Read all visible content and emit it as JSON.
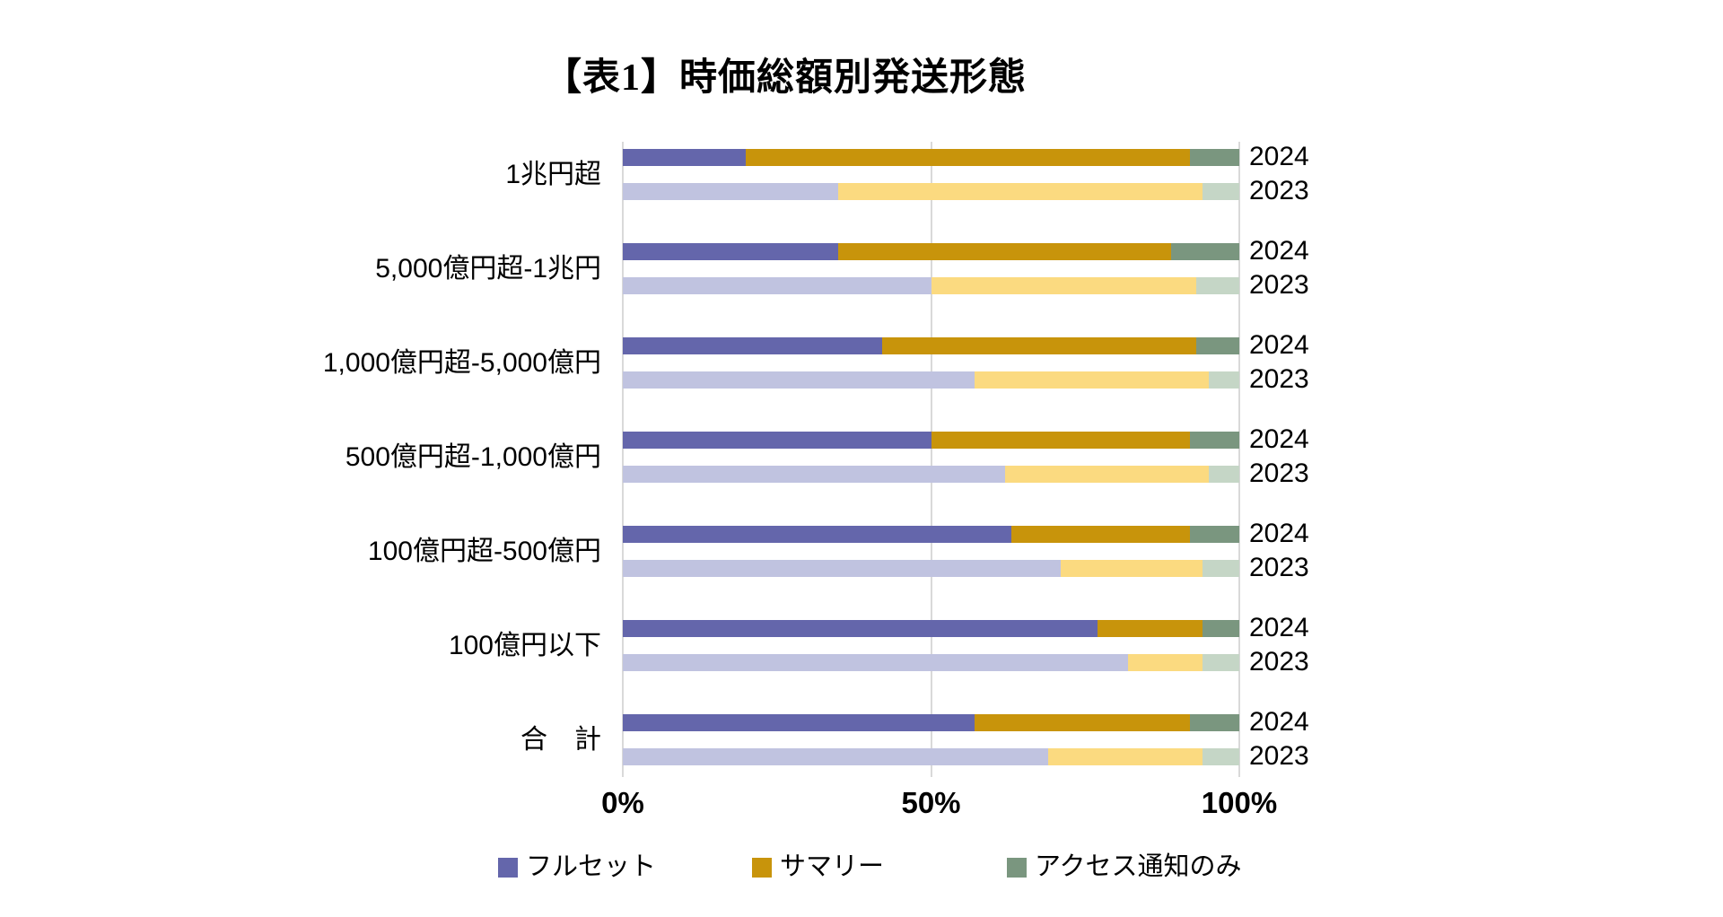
{
  "title": "【表1】時価総額別発送形態",
  "colors": {
    "fullset_2024": "#6466ab",
    "fullset_2023": "#c0c3e0",
    "summary_2024": "#c8940b",
    "summary_2023": "#fbda80",
    "access_2024": "#7a967f",
    "access_2023": "#c5d6c6",
    "gridline": "#d9d9d9",
    "text": "#000000"
  },
  "chart_data": {
    "type": "bar",
    "orientation": "horizontal",
    "stacked": true,
    "unit": "percent",
    "title": "【表1】時価総額別発送形態",
    "xlabel": "",
    "ylabel": "",
    "xlim": [
      0,
      100
    ],
    "x_tick_labels": [
      "0%",
      "50%",
      "100%"
    ],
    "x_tick_values": [
      0,
      50,
      100
    ],
    "grid": "vertical",
    "legend_position": "bottom",
    "series_names": [
      "フルセット",
      "サマリー",
      "アクセス通知のみ"
    ],
    "categories": [
      {
        "label": "1兆円超",
        "bars": [
          {
            "year": "2024",
            "values": [
              20,
              72,
              8
            ]
          },
          {
            "year": "2023",
            "values": [
              35,
              59,
              6
            ]
          }
        ]
      },
      {
        "label": "5,000億円超-1兆円",
        "bars": [
          {
            "year": "2024",
            "values": [
              35,
              54,
              11
            ]
          },
          {
            "year": "2023",
            "values": [
              50,
              43,
              7
            ]
          }
        ]
      },
      {
        "label": "1,000億円超-5,000億円",
        "bars": [
          {
            "year": "2024",
            "values": [
              42,
              51,
              7
            ]
          },
          {
            "year": "2023",
            "values": [
              57,
              38,
              5
            ]
          }
        ]
      },
      {
        "label": "500億円超-1,000億円",
        "bars": [
          {
            "year": "2024",
            "values": [
              50,
              42,
              8
            ]
          },
          {
            "year": "2023",
            "values": [
              62,
              33,
              5
            ]
          }
        ]
      },
      {
        "label": "100億円超-500億円",
        "bars": [
          {
            "year": "2024",
            "values": [
              63,
              29,
              8
            ]
          },
          {
            "year": "2023",
            "values": [
              71,
              23,
              6
            ]
          }
        ]
      },
      {
        "label": "100億円以下",
        "bars": [
          {
            "year": "2024",
            "values": [
              77,
              17,
              6
            ]
          },
          {
            "year": "2023",
            "values": [
              82,
              12,
              6
            ]
          }
        ]
      },
      {
        "label": "合　計",
        "bars": [
          {
            "year": "2024",
            "values": [
              57,
              35,
              8
            ]
          },
          {
            "year": "2023",
            "values": [
              69,
              25,
              6
            ]
          }
        ]
      }
    ]
  },
  "legend": {
    "items": [
      {
        "label": "フルセット",
        "color": "#6466ab"
      },
      {
        "label": "サマリー",
        "color": "#c8940b"
      },
      {
        "label": "アクセス通知のみ",
        "color": "#7a967f"
      }
    ]
  }
}
